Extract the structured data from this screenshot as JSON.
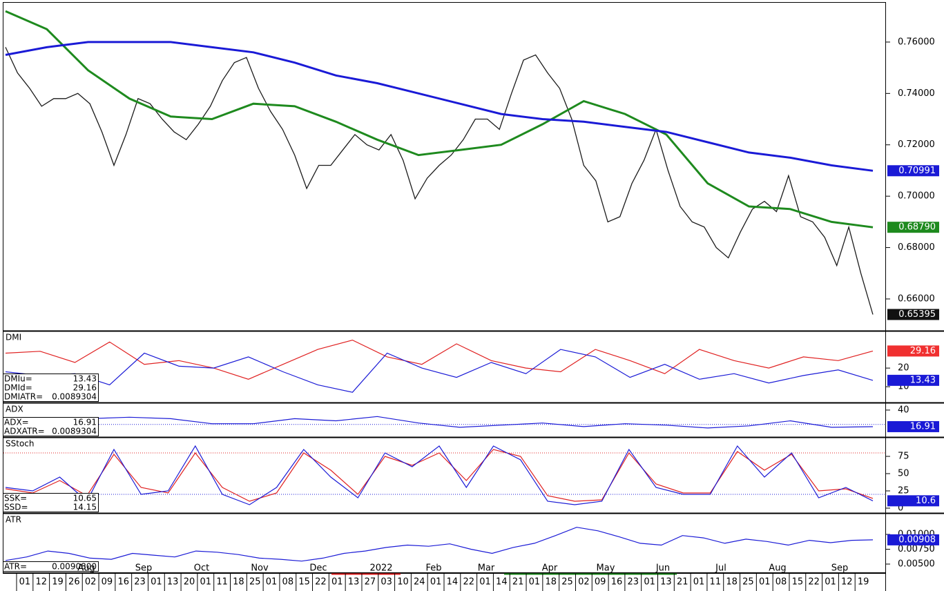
{
  "chart_data": [
    {
      "type": "line",
      "panel": "main",
      "ylim": [
        0.6479,
        0.7753
      ],
      "yticks": [
        {
          "value": 0.66,
          "label": "0.66000"
        },
        {
          "value": 0.68,
          "label": "0.68000"
        },
        {
          "value": 0.7,
          "label": "0.70000"
        },
        {
          "value": 0.72,
          "label": "0.72000"
        },
        {
          "value": 0.74,
          "label": "0.74000"
        },
        {
          "value": 0.76,
          "label": "0.76000"
        }
      ],
      "series": [
        {
          "color": "#1a1a1a",
          "values": [
            0.758,
            0.748,
            0.742,
            0.735,
            0.738,
            0.738,
            0.74,
            0.736,
            0.725,
            0.712,
            0.724,
            0.738,
            0.736,
            0.73,
            0.725,
            0.722,
            0.728,
            0.735,
            0.745,
            0.752,
            0.754,
            0.742,
            0.733,
            0.726,
            0.716,
            0.703,
            0.712,
            0.712,
            0.718,
            0.724,
            0.72,
            0.718,
            0.724,
            0.714,
            0.699,
            0.707,
            0.712,
            0.716,
            0.722,
            0.73,
            0.73,
            0.726,
            0.74,
            0.753,
            0.755,
            0.748,
            0.742,
            0.73,
            0.712,
            0.706,
            0.69,
            0.692,
            0.705,
            0.714,
            0.726,
            0.71,
            0.696,
            0.69,
            0.688,
            0.68,
            0.676,
            0.686,
            0.695,
            0.698,
            0.694,
            0.708,
            0.692,
            0.69,
            0.684,
            0.673,
            0.688,
            0.67,
            0.65395
          ],
          "last_label": "0.65395",
          "label_fill": "#111111"
        },
        {
          "color": "#1e8a1e",
          "values": [
            0.772,
            0.765,
            0.749,
            0.738,
            0.731,
            0.73,
            0.736,
            0.735,
            0.729,
            0.722,
            0.716,
            0.718,
            0.72,
            0.728,
            0.737,
            0.732,
            0.724,
            0.705,
            0.696,
            0.695,
            0.69,
            0.6879
          ],
          "last_label": "0.68790",
          "label_fill": "#1e8a1e"
        },
        {
          "color": "#1a1ad6",
          "values": [
            0.755,
            0.758,
            0.76,
            0.76,
            0.76,
            0.758,
            0.756,
            0.752,
            0.747,
            0.744,
            0.74,
            0.736,
            0.732,
            0.73,
            0.729,
            0.727,
            0.725,
            0.721,
            0.717,
            0.715,
            0.712,
            0.70991
          ],
          "last_label": "0.70991",
          "label_fill": "#1a1ad6"
        }
      ]
    },
    {
      "type": "line",
      "panel": "dmi",
      "title": "DMI",
      "ylim": [
        1.9,
        39.3
      ],
      "yticks": [
        10,
        20
      ],
      "readouts": [
        [
          "DMIu=",
          "13.43"
        ],
        [
          "DMId=",
          "29.16"
        ],
        [
          "DMIATR=",
          "0.0089304"
        ]
      ],
      "series": [
        {
          "color": "#e02020",
          "values": [
            28,
            29,
            23,
            34,
            22,
            24,
            20,
            14,
            22,
            30,
            35,
            26,
            22,
            33,
            24,
            20,
            18,
            30,
            24,
            17,
            30,
            24,
            20,
            26,
            24,
            29.16
          ],
          "last_label": "29.16",
          "label_fill": "#f03030"
        },
        {
          "color": "#1a1ad6",
          "values": [
            18,
            16,
            17,
            11,
            28,
            21,
            20,
            26,
            18,
            11,
            7,
            28,
            20,
            15,
            23,
            17,
            30,
            26,
            15,
            22,
            14,
            17,
            12,
            16,
            19,
            13.43
          ],
          "last_label": "13.43",
          "label_fill": "#1a1ad6"
        }
      ]
    },
    {
      "type": "line",
      "panel": "adx",
      "title": "ADX",
      "ylim": [
        3.4,
        48.6
      ],
      "yticks": [
        40
      ],
      "levels": [
        20
      ],
      "readouts": [
        [
          "ADX=",
          "16.91"
        ],
        [
          "ADXATR=",
          "0.0089304"
        ]
      ],
      "series": [
        {
          "color": "#1a1ad6",
          "values": [
            25,
            28,
            28,
            30,
            28,
            21,
            21,
            28,
            25,
            31,
            22,
            16,
            19,
            22,
            17,
            21,
            19,
            15,
            18,
            25,
            16,
            16.91
          ],
          "last_label": "16.91",
          "label_fill": "#1a1ad6"
        }
      ]
    },
    {
      "type": "line",
      "panel": "stoch",
      "title": "SStoch",
      "ylim": [
        -6,
        101
      ],
      "yticks": [
        0,
        25,
        50,
        75
      ],
      "levels": [
        80,
        20
      ],
      "readouts": [
        [
          "SSK=",
          "10.65"
        ],
        [
          "SSD=",
          "14.15"
        ]
      ],
      "series": [
        {
          "color": "#e02020",
          "values": [
            28,
            22,
            40,
            18,
            78,
            30,
            22,
            80,
            30,
            10,
            22,
            80,
            55,
            20,
            75,
            62,
            80,
            40,
            85,
            75,
            18,
            10,
            12,
            80,
            35,
            22,
            22,
            82,
            55,
            78,
            25,
            28,
            14.15
          ]
        },
        {
          "color": "#1a1ad6",
          "values": [
            30,
            25,
            45,
            10,
            85,
            20,
            25,
            90,
            20,
            5,
            30,
            85,
            45,
            15,
            80,
            60,
            90,
            30,
            90,
            70,
            10,
            5,
            10,
            85,
            30,
            20,
            20,
            90,
            45,
            80,
            15,
            30,
            10.65
          ],
          "last_label": "10.6",
          "label_fill": "#1a1ad6"
        }
      ]
    },
    {
      "type": "line",
      "panel": "atr",
      "title": "ATR",
      "ylim": [
        0.00372,
        0.01337
      ],
      "yticks": [
        {
          "value": 0.005,
          "label": "0.00500"
        },
        {
          "value": 0.0075,
          "label": "0.00750"
        },
        {
          "value": 0.01,
          "label": "0.01000"
        }
      ],
      "readouts": [
        [
          "ATR=",
          "0.0090800"
        ]
      ],
      "series": [
        {
          "color": "#1a1ad6",
          "values": [
            0.0056,
            0.0062,
            0.0072,
            0.0068,
            0.006,
            0.0058,
            0.0068,
            0.0065,
            0.0062,
            0.0072,
            0.007,
            0.0066,
            0.006,
            0.0058,
            0.0055,
            0.006,
            0.0068,
            0.0072,
            0.0078,
            0.0082,
            0.008,
            0.0084,
            0.0075,
            0.0068,
            0.0078,
            0.0085,
            0.0098,
            0.0112,
            0.0106,
            0.0096,
            0.0085,
            0.0082,
            0.0098,
            0.0094,
            0.0085,
            0.0092,
            0.0088,
            0.0082,
            0.009,
            0.0086,
            0.009,
            0.00908
          ],
          "last_label": "0.00908",
          "label_fill": "#1a1ad6"
        }
      ]
    }
  ],
  "x_axis": {
    "months": [
      "Aug",
      "Sep",
      "Oct",
      "Nov",
      "Dec",
      "2022",
      "Feb",
      "Mar",
      "Apr",
      "May",
      "Jun",
      "Jul",
      "Aug",
      "Sep"
    ],
    "days": [
      "01",
      "12",
      "19",
      "26",
      "02",
      "09",
      "16",
      "23",
      "01",
      "13",
      "20",
      "01",
      "11",
      "18",
      "25",
      "01",
      "08",
      "15",
      "22",
      "01",
      "13",
      "27",
      "03",
      "10",
      "24",
      "01",
      "14",
      "22",
      "01",
      "14",
      "21",
      "01",
      "18",
      "25",
      "02",
      "09",
      "16",
      "23",
      "01",
      "13",
      "21",
      "01",
      "11",
      "18",
      "25",
      "01",
      "08",
      "15",
      "22",
      "01",
      "12",
      "19"
    ]
  }
}
